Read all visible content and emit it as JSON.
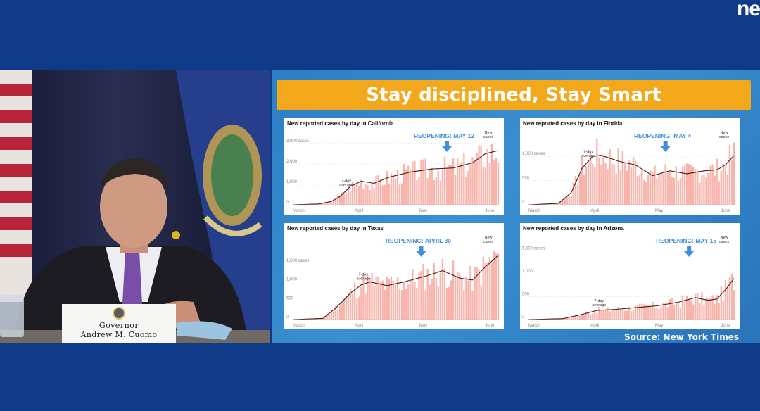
{
  "logo": "ne",
  "slide": {
    "title": "Stay disciplined, Stay Smart",
    "source": "Source: New York Times"
  },
  "nameplate": {
    "line1": "Governor",
    "line2": "Andrew M. Cuomo"
  },
  "colors": {
    "bar": "#f8b4ab",
    "line": "#4a1a12",
    "arrow": "#3f8fd9",
    "banner": "#f3a81c",
    "background": "#0f3a88"
  },
  "chart_data": [
    {
      "type": "bar",
      "title": "New reported cases by day in California",
      "reopening": {
        "label": "REOPENING: MAY 12",
        "day": 72
      },
      "ylim": [
        0,
        3200
      ],
      "yticks": [
        0,
        1000,
        2000,
        3000
      ],
      "ytick_labels": [
        "0",
        "1,000",
        "2,000",
        "3,000 cases"
      ],
      "xticks": [
        {
          "day": 0,
          "label": "March"
        },
        {
          "day": 31,
          "label": "April"
        },
        {
          "day": 61,
          "label": "May"
        },
        {
          "day": 92,
          "label": "June"
        }
      ],
      "avg_label": {
        "text": [
          "7-day",
          "average"
        ],
        "day": 25
      },
      "new_cases_label": [
        "New",
        "cases"
      ],
      "anchors": [
        [
          0,
          0
        ],
        [
          12,
          40
        ],
        [
          18,
          160
        ],
        [
          22,
          400
        ],
        [
          27,
          900
        ],
        [
          32,
          1150
        ],
        [
          38,
          1050
        ],
        [
          45,
          1350
        ],
        [
          55,
          1600
        ],
        [
          65,
          1750
        ],
        [
          75,
          1800
        ],
        [
          84,
          2050
        ],
        [
          90,
          2500
        ],
        [
          96,
          2650
        ]
      ],
      "noise_seed": 3
    },
    {
      "type": "bar",
      "title": "New reported cases by day in Florida",
      "reopening": {
        "label": "REOPENING: MAY 4",
        "day": 64
      },
      "ylim": [
        0,
        1350
      ],
      "yticks": [
        0,
        500,
        1000
      ],
      "ytick_labels": [
        "0",
        "500",
        "1,000 cases"
      ],
      "xticks": [
        {
          "day": 0,
          "label": "March"
        },
        {
          "day": 31,
          "label": "April"
        },
        {
          "day": 61,
          "label": "May"
        },
        {
          "day": 92,
          "label": "June"
        }
      ],
      "avg_label": {
        "text": [
          "7-day",
          "average"
        ],
        "day": 28
      },
      "new_cases_label": [
        "New",
        "cases"
      ],
      "anchors": [
        [
          0,
          0
        ],
        [
          14,
          30
        ],
        [
          20,
          250
        ],
        [
          25,
          750
        ],
        [
          30,
          1000
        ],
        [
          34,
          1020
        ],
        [
          42,
          900
        ],
        [
          50,
          820
        ],
        [
          58,
          600
        ],
        [
          66,
          700
        ],
        [
          74,
          640
        ],
        [
          82,
          700
        ],
        [
          88,
          720
        ],
        [
          92,
          820
        ],
        [
          96,
          1020
        ]
      ],
      "noise_seed": 7
    },
    {
      "type": "bar",
      "title": "New reported cases by day in Texas",
      "reopening": {
        "label": "REOPENING: APRIL 30",
        "day": 60
      },
      "ylim": [
        0,
        2000
      ],
      "yticks": [
        0,
        500,
        1000,
        1500
      ],
      "ytick_labels": [
        "0",
        "500",
        "1,000",
        "1,500 cases"
      ],
      "xticks": [
        {
          "day": 0,
          "label": "March"
        },
        {
          "day": 31,
          "label": "April"
        },
        {
          "day": 61,
          "label": "May"
        },
        {
          "day": 92,
          "label": "June"
        }
      ],
      "avg_label": {
        "text": [
          "7-day",
          "average"
        ],
        "day": 33
      },
      "new_cases_label": [
        "New",
        "cases"
      ],
      "anchors": [
        [
          0,
          0
        ],
        [
          14,
          30
        ],
        [
          20,
          300
        ],
        [
          27,
          700
        ],
        [
          32,
          920
        ],
        [
          36,
          1000
        ],
        [
          44,
          900
        ],
        [
          52,
          1000
        ],
        [
          62,
          1150
        ],
        [
          70,
          1300
        ],
        [
          78,
          1100
        ],
        [
          84,
          1050
        ],
        [
          90,
          1400
        ],
        [
          96,
          1700
        ]
      ],
      "noise_seed": 11
    },
    {
      "type": "bar",
      "title": "New reported cases by day in Arizona",
      "reopening": {
        "label": "REOPENING: MAY 15",
        "day": 75
      },
      "ylim": [
        0,
        1650
      ],
      "yticks": [
        0,
        500,
        1000,
        1500
      ],
      "ytick_labels": [
        "0",
        "500",
        "1,000",
        "1,500 cases"
      ],
      "xticks": [
        {
          "day": 0,
          "label": "March"
        },
        {
          "day": 31,
          "label": "April"
        },
        {
          "day": 61,
          "label": "May"
        },
        {
          "day": 92,
          "label": "June"
        }
      ],
      "avg_label": {
        "text": [
          "7-day",
          "average"
        ],
        "day": 33
      },
      "new_cases_label": [
        "New",
        "cases"
      ],
      "anchors": [
        [
          0,
          0
        ],
        [
          16,
          20
        ],
        [
          24,
          100
        ],
        [
          32,
          200
        ],
        [
          40,
          220
        ],
        [
          50,
          260
        ],
        [
          60,
          300
        ],
        [
          70,
          380
        ],
        [
          78,
          480
        ],
        [
          84,
          420
        ],
        [
          88,
          450
        ],
        [
          92,
          650
        ],
        [
          96,
          900
        ]
      ],
      "noise_seed": 17
    }
  ]
}
